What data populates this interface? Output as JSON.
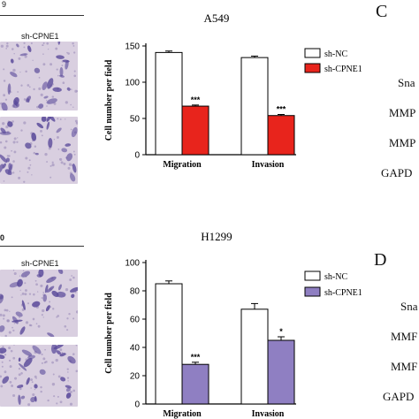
{
  "colors": {
    "sh_nc": "#ffffff",
    "a549_cpne1": "#e8241c",
    "h1299_cpne1": "#8f7fc2",
    "stain_bg": "#d9cfe0",
    "stain_cell": "#5a4a9a"
  },
  "panels": {
    "top": {
      "micro_header_symbol": "9",
      "micro_header": "sh-CPNE1"
    },
    "bottom": {
      "micro_header_symbol": "0",
      "micro_header": "sh-CPNE1"
    }
  },
  "right": {
    "panel_c": "C",
    "panel_d": "D",
    "c_rows": [
      "Sna",
      "MMP",
      "MMP",
      "GAPD"
    ],
    "d_rows": [
      "Sna",
      "MMF",
      "MMF",
      "GAPD"
    ]
  },
  "chart_data": [
    {
      "type": "bar",
      "title": "A549",
      "ylabel": "Cell number per field",
      "categories": [
        "Migration",
        "Invasion"
      ],
      "ylim": [
        0,
        150
      ],
      "yticks": [
        0,
        50,
        100,
        150
      ],
      "legend_position": "top-right",
      "series": [
        {
          "name": "sh-NC",
          "color": "#ffffff",
          "values": [
            141,
            134
          ],
          "errors": [
            2,
            2
          ],
          "sig": [
            "",
            ""
          ]
        },
        {
          "name": "sh-CPNE1",
          "color": "#e8241c",
          "values": [
            67,
            54
          ],
          "errors": [
            1.5,
            1.5
          ],
          "sig": [
            "***",
            "***"
          ]
        }
      ]
    },
    {
      "type": "bar",
      "title": "H1299",
      "ylabel": "Cell number per field",
      "categories": [
        "Migration",
        "Invasion"
      ],
      "ylim": [
        0,
        100
      ],
      "yticks": [
        0,
        20,
        40,
        60,
        80,
        100
      ],
      "legend_position": "top-right",
      "series": [
        {
          "name": "sh-NC",
          "color": "#ffffff",
          "values": [
            85,
            67
          ],
          "errors": [
            2,
            4
          ],
          "sig": [
            "",
            ""
          ]
        },
        {
          "name": "sh-CPNE1",
          "color": "#8f7fc2",
          "values": [
            28,
            45
          ],
          "errors": [
            1.5,
            2.5
          ],
          "sig": [
            "***",
            "*"
          ]
        }
      ]
    }
  ]
}
